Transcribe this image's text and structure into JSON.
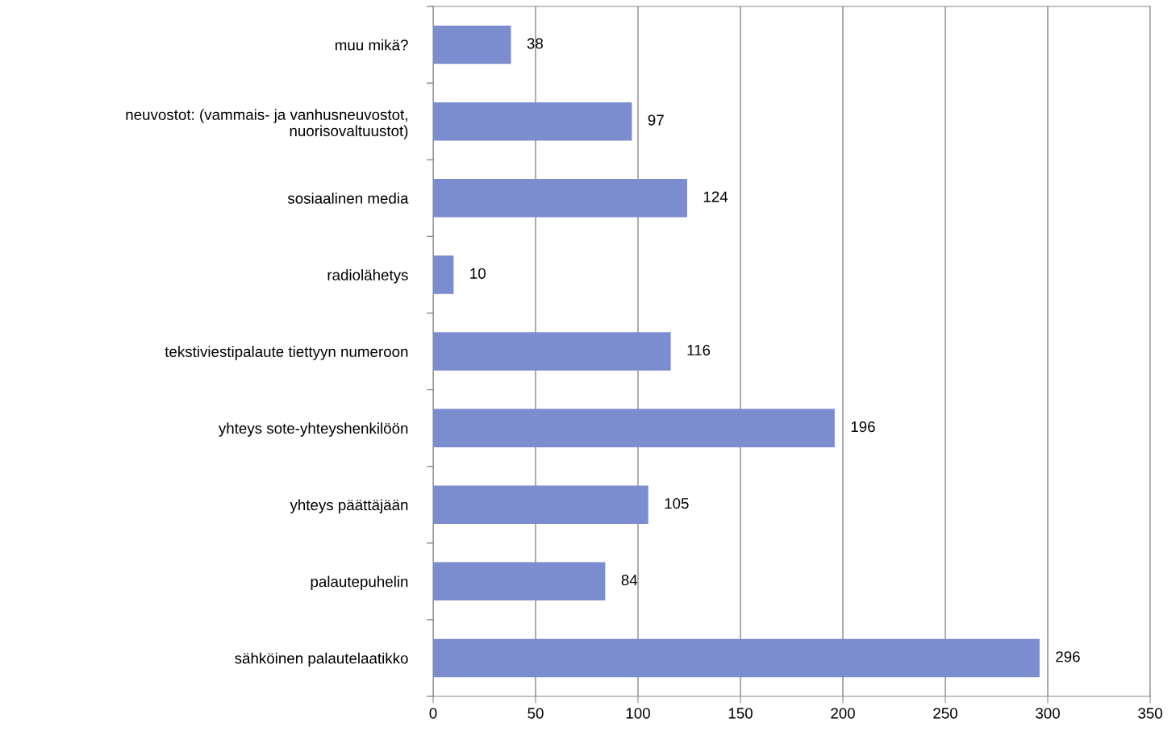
{
  "chart_data": {
    "type": "bar",
    "orientation": "horizontal",
    "categories": [
      "muu mikä?",
      "neuvostot: (vammais- ja vanhusneuvostot,\nnuorisovaltuustot)",
      "sosiaalinen media",
      "radiolähetys",
      "tekstiviestipalaute tiettyyn numeroon",
      "yhteys sote-yhteyshenkilöön",
      "yhteys päättäjään",
      "palautepuhelin",
      "sähköinen palautelaatikko"
    ],
    "values": [
      38,
      97,
      124,
      10,
      116,
      196,
      105,
      84,
      296
    ],
    "color": "#7b8ccf",
    "data_labels": true,
    "xlim": [
      0,
      350
    ],
    "xticks": [
      0,
      50,
      100,
      150,
      200,
      250,
      300,
      350
    ],
    "grid": "x",
    "legend": false
  }
}
